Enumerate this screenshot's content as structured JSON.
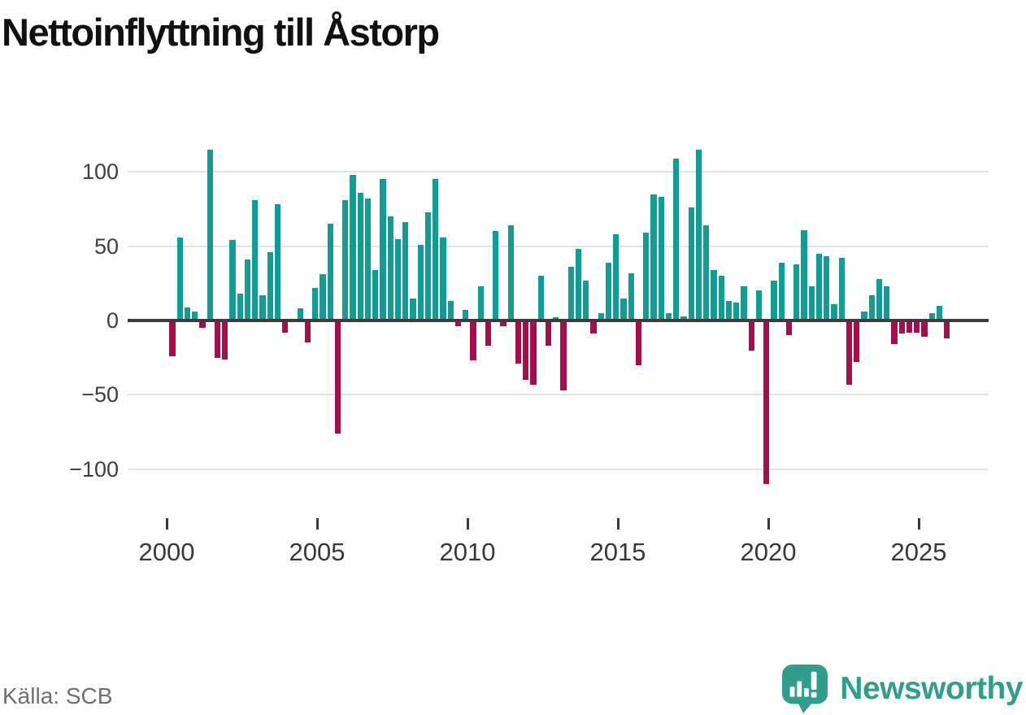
{
  "title": "Nettoinflyttning till Åstorp",
  "source": "Källa: SCB",
  "branding": {
    "name": "Newsworthy",
    "logo_icon": "newsworthy-speech-bubble-chart-icon"
  },
  "colors": {
    "positive_bar": "#129c96",
    "negative_bar": "#a50e4d",
    "axis": "#3c3c3c",
    "gridline": "#e4e4e4",
    "brand_teal": "#2f9e8d",
    "title_text": "#111111",
    "tick_text": "#383838",
    "source_text": "#6f6f6f"
  },
  "chart_data": {
    "type": "bar",
    "title": "Nettoinflyttning till Åstorp",
    "frequency": "quarterly",
    "x_start": "2000 Q1",
    "x_end": "2025 Q4",
    "x_tick_labels": [
      "2000",
      "2005",
      "2010",
      "2015",
      "2020",
      "2025"
    ],
    "y_ticks": [
      {
        "value": 100,
        "label": "100"
      },
      {
        "value": 50,
        "label": "50"
      },
      {
        "value": 0,
        "label": "0"
      },
      {
        "value": -50,
        "label": "−50"
      },
      {
        "value": -100,
        "label": "−100"
      }
    ],
    "ylim": [
      -120,
      128
    ],
    "grid": true,
    "legend": false,
    "series": [
      {
        "name": "Nettoinflyttning",
        "values": [
          -24,
          56,
          9,
          6,
          -5,
          115,
          -25,
          -26,
          54,
          18,
          41,
          81,
          17,
          46,
          78,
          -8,
          0,
          8,
          -15,
          22,
          31,
          65,
          -76,
          81,
          98,
          86,
          82,
          34,
          95,
          70,
          55,
          66,
          15,
          51,
          73,
          95,
          56,
          13,
          -4,
          7,
          -27,
          23,
          -17,
          60,
          -4,
          64,
          -29,
          -40,
          -43,
          30,
          -17,
          2,
          -47,
          36,
          48,
          27,
          -9,
          5,
          39,
          58,
          15,
          32,
          -30,
          59,
          85,
          83,
          5,
          109,
          3,
          76,
          115,
          64,
          34,
          30,
          13,
          12,
          23,
          -20,
          20,
          -110,
          27,
          39,
          -10,
          38,
          61,
          23,
          45,
          43,
          11,
          42,
          -43,
          -28,
          6,
          17,
          28,
          23,
          -16,
          -9,
          -8,
          -8,
          -11,
          5,
          10,
          -12
        ]
      }
    ]
  }
}
